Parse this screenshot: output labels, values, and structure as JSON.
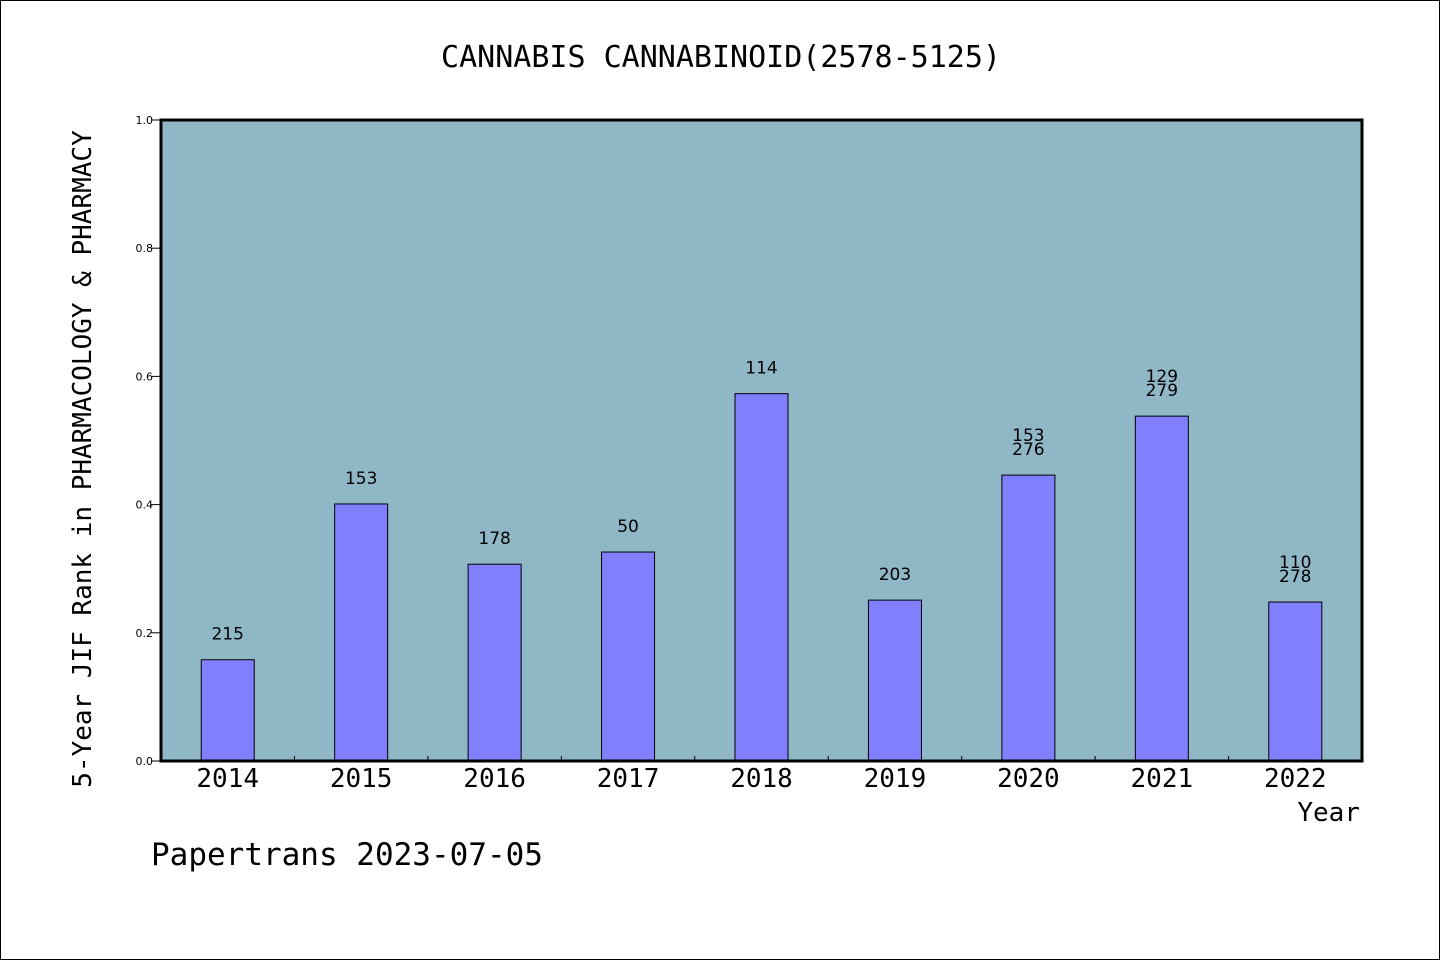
{
  "chart_data": {
    "type": "bar",
    "title": "CANNABIS CANNABINOID(2578-5125)",
    "xlabel": "Year",
    "ylabel": "5-Year JIF Rank in PHARMACOLOGY & PHARMACY",
    "ylim": [
      0,
      1.0
    ],
    "yticks": [
      "0.0",
      "0.2",
      "0.4",
      "0.6",
      "0.8",
      "1.0"
    ],
    "categories": [
      "2014",
      "2015",
      "2016",
      "2017",
      "2018",
      "2019",
      "2020",
      "2021",
      "2022"
    ],
    "values": [
      0.158,
      0.401,
      0.307,
      0.326,
      0.573,
      0.251,
      0.446,
      0.538,
      0.248
    ],
    "labels": [
      [
        "215"
      ],
      [
        "153"
      ],
      [
        "178"
      ],
      [
        "50"
      ],
      [
        "114"
      ],
      [
        "203"
      ],
      [
        "153",
        "276"
      ],
      [
        "129",
        "279"
      ],
      [
        "110",
        "278"
      ]
    ],
    "colors": {
      "bar": "#8080ff",
      "plot_bg": "#8fb7c6"
    },
    "grid": false
  },
  "footer": "Papertrans 2023-07-05"
}
